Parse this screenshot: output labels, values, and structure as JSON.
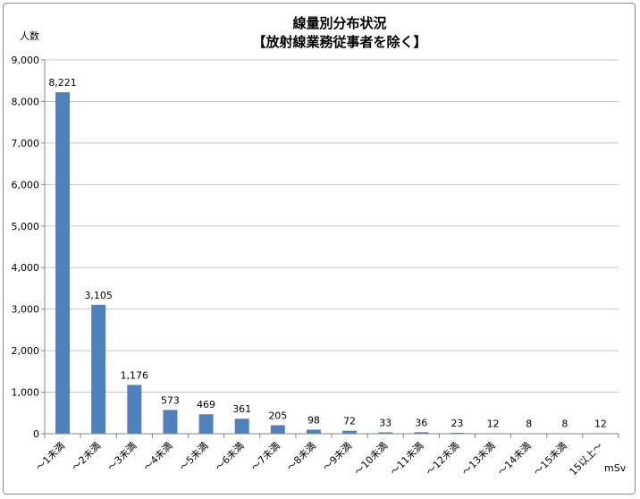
{
  "chart_data": {
    "type": "bar",
    "title": "線量別分布状況",
    "subtitle": "【放射線業務従事者を除く】",
    "ylabel": "人数",
    "xlabel": "mSv",
    "ylim": [
      0,
      9000
    ],
    "yticks": [
      0,
      1000,
      2000,
      3000,
      4000,
      5000,
      6000,
      7000,
      8000,
      9000
    ],
    "ytick_labels": [
      "0",
      "1,000",
      "2,000",
      "3,000",
      "4,000",
      "5,000",
      "6,000",
      "7,000",
      "8,000",
      "9,000"
    ],
    "grid": true,
    "legend": "none",
    "categories": [
      "～1未満",
      "～2未満",
      "～3未満",
      "～4未満",
      "～5未満",
      "～6未満",
      "～7未満",
      "～8未満",
      "～9未満",
      "～10未満",
      "～11未満",
      "～12未満",
      "～13未満",
      "～14未満",
      "～15未満",
      "15以上～"
    ],
    "values": [
      8221,
      3105,
      1176,
      573,
      469,
      361,
      205,
      98,
      72,
      33,
      36,
      23,
      12,
      8,
      8,
      12
    ],
    "value_labels": [
      "8,221",
      "3,105",
      "1,176",
      "573",
      "469",
      "361",
      "205",
      "98",
      "72",
      "33",
      "36",
      "23",
      "12",
      "8",
      "8",
      "12"
    ],
    "bar_color": "#4f81bd"
  }
}
